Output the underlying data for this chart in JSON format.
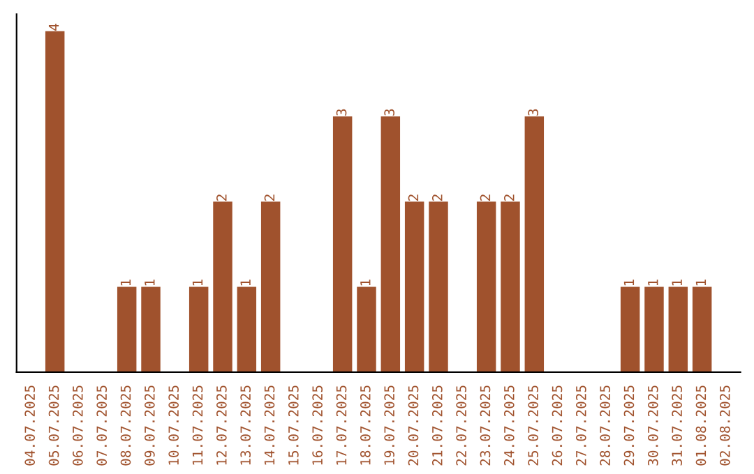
{
  "chart_data": {
    "type": "bar",
    "categories": [
      "04.07.2025",
      "05.07.2025",
      "06.07.2025",
      "07.07.2025",
      "08.07.2025",
      "09.07.2025",
      "10.07.2025",
      "11.07.2025",
      "12.07.2025",
      "13.07.2025",
      "14.07.2025",
      "15.07.2025",
      "16.07.2025",
      "17.07.2025",
      "18.07.2025",
      "19.07.2025",
      "20.07.2025",
      "21.07.2025",
      "22.07.2025",
      "23.07.2025",
      "24.07.2025",
      "25.07.2025",
      "26.07.2025",
      "27.07.2025",
      "28.07.2025",
      "29.07.2025",
      "30.07.2025",
      "31.07.2025",
      "01.08.2025",
      "02.08.2025"
    ],
    "values": [
      null,
      4,
      null,
      null,
      1,
      1,
      null,
      1,
      2,
      1,
      2,
      null,
      null,
      3,
      1,
      3,
      2,
      2,
      null,
      2,
      2,
      3,
      null,
      null,
      null,
      1,
      1,
      1,
      1,
      null
    ],
    "value_labels": [
      null,
      "4",
      null,
      null,
      "1",
      "1",
      null,
      "1",
      "2",
      "1",
      "2",
      null,
      null,
      "3",
      "1",
      "3",
      "2",
      "2",
      null,
      "2",
      "2",
      "3",
      null,
      null,
      null,
      "1",
      "1",
      "1",
      "1",
      null
    ],
    "color": "#a0522d",
    "tick_labels": "x",
    "grid": false,
    "legend": false
  }
}
